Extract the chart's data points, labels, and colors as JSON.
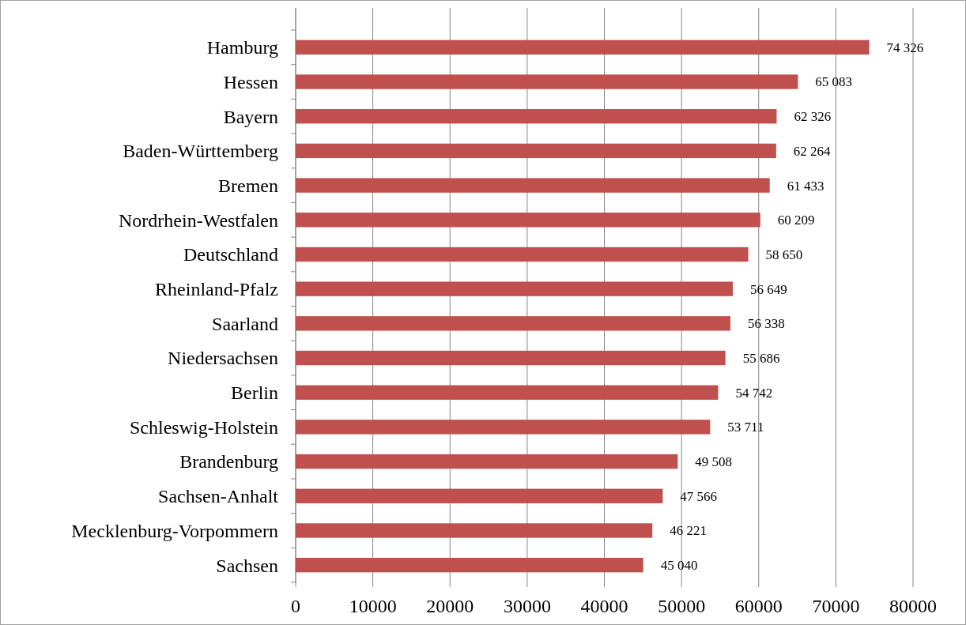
{
  "chart_data": {
    "type": "bar",
    "orientation": "horizontal",
    "categories": [
      "Hamburg",
      "Hessen",
      "Bayern",
      "Baden-Württemberg",
      "Bremen",
      "Nordrhein-Westfalen",
      "Deutschland",
      "Rheinland-Pfalz",
      "Saarland",
      "Niedersachsen",
      "Berlin",
      "Schleswig-Holstein",
      "Brandenburg",
      "Sachsen-Anhalt",
      "Mecklenburg-Vorpommern",
      "Sachsen"
    ],
    "values": [
      74326,
      65083,
      62326,
      62264,
      61433,
      60209,
      58650,
      56649,
      56338,
      55686,
      54742,
      53711,
      49508,
      47566,
      46221,
      45040
    ],
    "value_labels": [
      "74 326",
      "65 083",
      "62 326",
      "62 264",
      "61 433",
      "60 209",
      "58 650",
      "56 649",
      "56 338",
      "55 686",
      "54 742",
      "53 711",
      "49 508",
      "47 566",
      "46 221",
      "45 040"
    ],
    "color": "#c0504d",
    "xlim": [
      0,
      80000
    ],
    "xticks": [
      0,
      10000,
      20000,
      30000,
      40000,
      50000,
      60000,
      70000,
      80000
    ],
    "grid": "x"
  }
}
